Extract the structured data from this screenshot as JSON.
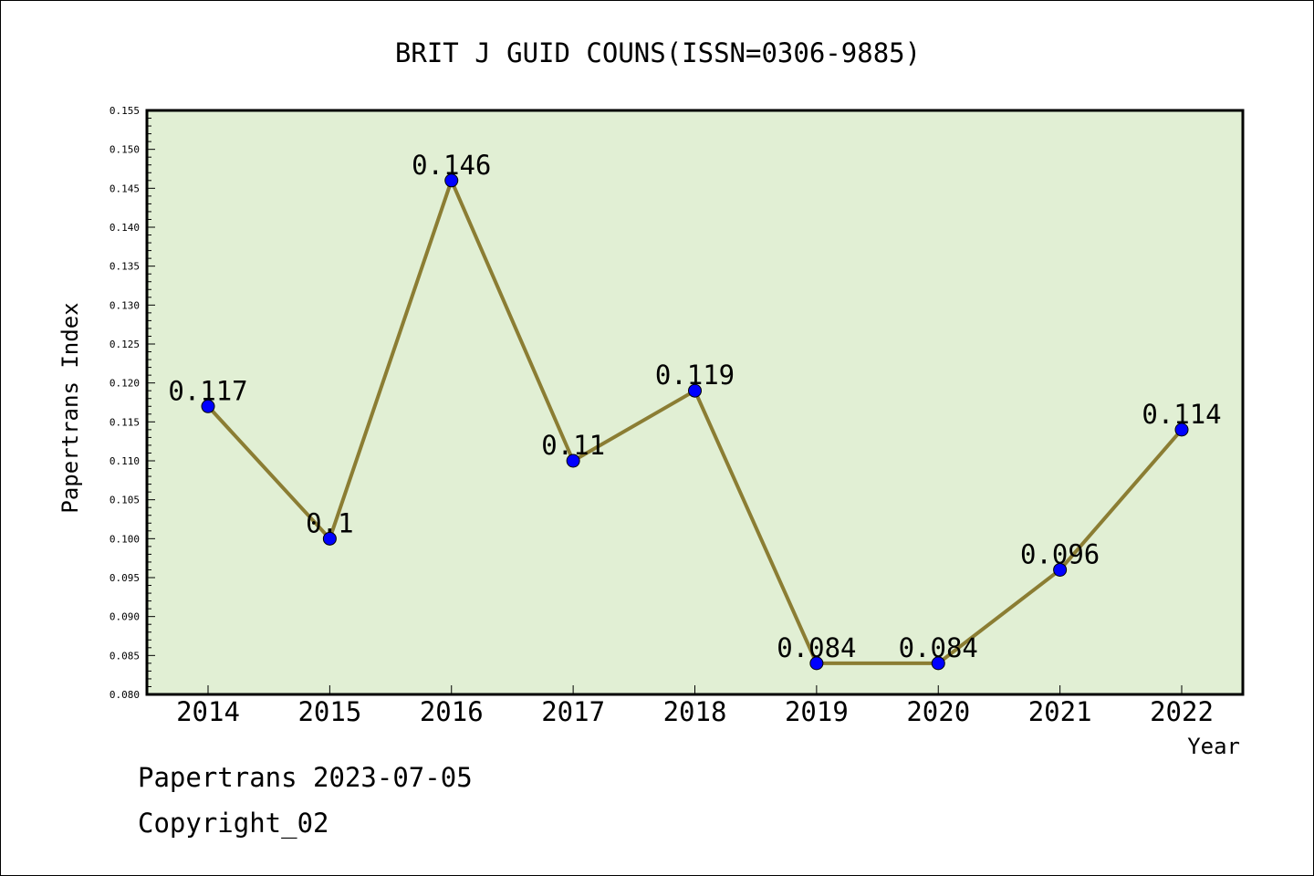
{
  "chart_data": {
    "type": "line",
    "title": "BRIT J GUID COUNS(ISSN=0306-9885)",
    "xlabel": "Year",
    "ylabel": "Papertrans Index",
    "categories": [
      "2014",
      "2015",
      "2016",
      "2017",
      "2018",
      "2019",
      "2020",
      "2021",
      "2022"
    ],
    "series": [
      {
        "values": [
          0.117,
          0.1,
          0.146,
          0.11,
          0.119,
          0.084,
          0.084,
          0.096,
          0.114
        ],
        "data_labels": [
          "0.117",
          "0.1",
          "0.146",
          "0.11",
          "0.119",
          "0.084",
          "0.084",
          "0.096",
          "0.114"
        ]
      }
    ],
    "ylim": [
      0.08,
      0.155
    ],
    "yticks": [
      "0.080",
      "0.085",
      "0.090",
      "0.095",
      "0.100",
      "0.105",
      "0.110",
      "0.115",
      "0.120",
      "0.125",
      "0.130",
      "0.135",
      "0.140",
      "0.145",
      "0.150",
      "0.155"
    ],
    "grid": false,
    "legend": "none",
    "colors": {
      "plot_background": "#e1efd4",
      "line": "#8b7d33",
      "marker": "#0000ff"
    }
  },
  "footer": {
    "line1": "Papertrans 2023-07-05",
    "line2": "Copyright_02"
  }
}
